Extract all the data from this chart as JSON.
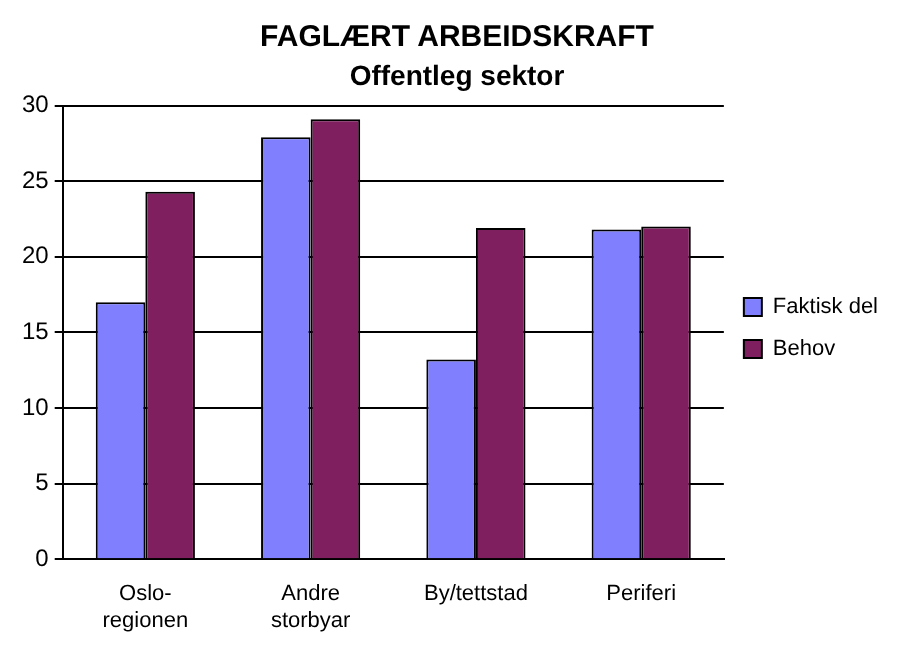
{
  "chart_data": {
    "type": "bar",
    "title": "FAGLÆRT ARBEIDSKRAFT",
    "subtitle": "Offentleg sektor",
    "categories": [
      "Oslo-\nregionen",
      "Andre\nstorbyar",
      "By/tettstad",
      "Periferi"
    ],
    "series": [
      {
        "name": "Faktisk del",
        "color": "#8080ff",
        "values": [
          17,
          27.9,
          13.2,
          21.8
        ]
      },
      {
        "name": "Behov",
        "color": "#7f1f5f",
        "values": [
          24.3,
          29.1,
          21.9,
          22
        ]
      }
    ],
    "ylim": [
      0,
      30
    ],
    "yticks": [
      0,
      5,
      10,
      15,
      20,
      25,
      30
    ],
    "grid": "y",
    "legend": "right"
  }
}
